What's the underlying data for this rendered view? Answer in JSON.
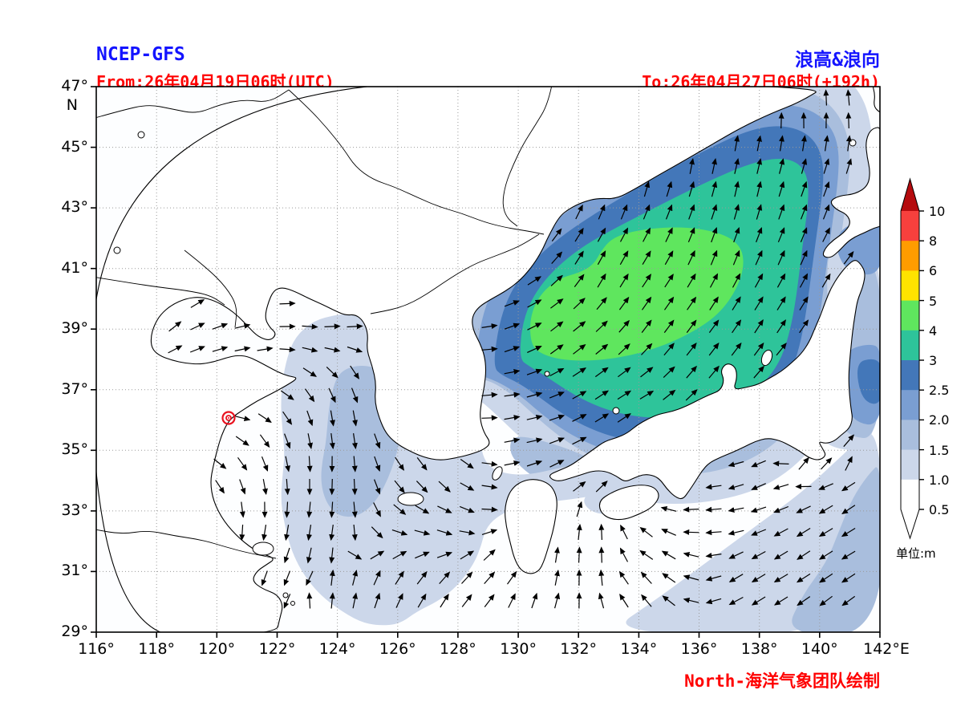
{
  "header": {
    "model": "NCEP-GFS",
    "product": "浪高&浪向",
    "from": "From:26年04月19日06时(UTC)",
    "to": "To:26年04月27日06时(+192h)",
    "title_color": "#1414ff",
    "time_color": "#ff0000"
  },
  "footer": {
    "credit": "North-海洋气象团队绘制",
    "color": "#ff0000"
  },
  "axes": {
    "lat_labels": [
      "47°",
      "45°",
      "43°",
      "41°",
      "39°",
      "37°",
      "35°",
      "33°",
      "31°",
      "29°"
    ],
    "lat_unit": "N",
    "lon_labels": [
      "116°",
      "118°",
      "120°",
      "122°",
      "124°",
      "126°",
      "128°",
      "130°",
      "132°",
      "134°",
      "136°",
      "138°",
      "140°",
      "142°"
    ],
    "lon_unit": "E",
    "lon_range": [
      116,
      142
    ],
    "lat_range": [
      29,
      47
    ]
  },
  "colorbar": {
    "unit_label": "单位:m",
    "tick_labels_top_to_bottom": [
      "10",
      "8",
      "6",
      "5",
      "4",
      "3",
      "2.5",
      "2.0",
      "1.5",
      "1.0",
      "0.5"
    ],
    "segment_colors_top_to_bottom": [
      "#f7403d",
      "#ff9c00",
      "#ffe300",
      "#5fe65e",
      "#2ec49a",
      "#4377b9",
      "#7a9ed2",
      "#a9bedd",
      "#ccd7ea",
      "#ffffff"
    ],
    "over_color": "#b50b0e",
    "under_color": "#ffffff"
  },
  "map": {
    "sea_color": "#fdfeff",
    "land_color": "#ffffff",
    "coast_color": "#000000",
    "border_color": "#000000",
    "grid_color": "#9a9a9a",
    "arrow_color": "#000000",
    "marker_color": "#e8121f",
    "fill_levels_m": {
      "1.0-1.5": "#ccd7ea",
      "1.5-2.0": "#a9bedd",
      "2.0-2.5": "#7a9ed2",
      "2.5-3": "#4377b9",
      "3-4": "#2ec49a",
      "4-5": "#5fe65e"
    },
    "features": {
      "peak_region": "Sea of Japan, 4-5 m maximum",
      "secondary_region": "Yellow Sea / East China Sea, 1.0-2.0 m",
      "pacific_band": "Pacific southeast of Japan, 1.0-2.0 m",
      "marker_location": "Shandong coast near 120.5E 36.1N"
    }
  }
}
